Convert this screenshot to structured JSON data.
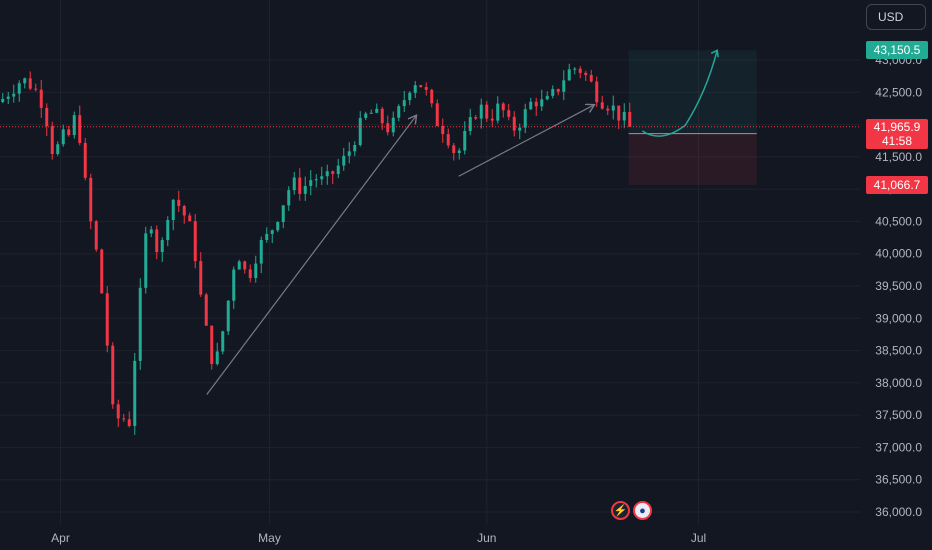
{
  "currency": "USD",
  "chart_data": {
    "type": "candlestick",
    "y_axis": {
      "range": [
        35800,
        43500
      ],
      "ticks": [
        "43,000.0",
        "42,500.0",
        "42,000.0",
        "41,500.0",
        "41,000.0",
        "40,500.0",
        "40,000.0",
        "39,500.0",
        "39,000.0",
        "38,500.0",
        "38,000.0",
        "37,500.0",
        "37,000.0",
        "36,500.0",
        "36,000.0"
      ]
    },
    "x_axis": {
      "labels": [
        "Apr",
        "May",
        "Jun",
        "Jul"
      ]
    },
    "price_line": {
      "value": 41965.9,
      "label": "41,965.9",
      "countdown": "41:58"
    },
    "position_levels": {
      "target": {
        "value": 43150.5,
        "label": "43,150.5"
      },
      "entry": {
        "value": 41860
      },
      "stop": {
        "value": 41066.7,
        "label": "41,066.7"
      }
    },
    "price_path": [
      {
        "t": 0,
        "p": 42350
      },
      {
        "t": 2,
        "p": 42550
      },
      {
        "t": 4,
        "p": 42700
      },
      {
        "t": 6,
        "p": 42600
      },
      {
        "t": 8,
        "p": 42300
      },
      {
        "t": 10,
        "p": 41400
      },
      {
        "t": 11,
        "p": 41900
      },
      {
        "t": 12,
        "p": 41700
      },
      {
        "t": 14,
        "p": 42200
      },
      {
        "t": 16,
        "p": 40700
      },
      {
        "t": 18,
        "p": 39800
      },
      {
        "t": 20,
        "p": 38200
      },
      {
        "t": 21,
        "p": 36900
      },
      {
        "t": 22,
        "p": 38000
      },
      {
        "t": 23,
        "p": 36900
      },
      {
        "t": 25,
        "p": 38900
      },
      {
        "t": 27,
        "p": 40700
      },
      {
        "t": 29,
        "p": 39900
      },
      {
        "t": 31,
        "p": 40900
      },
      {
        "t": 33,
        "p": 40700
      },
      {
        "t": 35,
        "p": 40300
      },
      {
        "t": 37,
        "p": 39000
      },
      {
        "t": 39,
        "p": 38200
      },
      {
        "t": 41,
        "p": 39000
      },
      {
        "t": 43,
        "p": 40100
      },
      {
        "t": 45,
        "p": 39600
      },
      {
        "t": 47,
        "p": 40100
      },
      {
        "t": 49,
        "p": 40300
      },
      {
        "t": 51,
        "p": 40700
      },
      {
        "t": 53,
        "p": 41100
      },
      {
        "t": 55,
        "p": 41000
      },
      {
        "t": 57,
        "p": 41200
      },
      {
        "t": 59,
        "p": 41100
      },
      {
        "t": 61,
        "p": 41300
      },
      {
        "t": 63,
        "p": 41500
      },
      {
        "t": 65,
        "p": 41900
      },
      {
        "t": 67,
        "p": 42200
      },
      {
        "t": 69,
        "p": 42100
      },
      {
        "t": 71,
        "p": 41900
      },
      {
        "t": 73,
        "p": 42300
      },
      {
        "t": 75,
        "p": 42700
      },
      {
        "t": 77,
        "p": 42600
      },
      {
        "t": 79,
        "p": 42100
      },
      {
        "t": 81,
        "p": 41900
      },
      {
        "t": 83,
        "p": 41500
      },
      {
        "t": 85,
        "p": 41900
      },
      {
        "t": 87,
        "p": 42300
      },
      {
        "t": 89,
        "p": 42100
      },
      {
        "t": 91,
        "p": 42300
      },
      {
        "t": 93,
        "p": 41900
      },
      {
        "t": 95,
        "p": 42100
      },
      {
        "t": 97,
        "p": 42400
      },
      {
        "t": 99,
        "p": 42300
      },
      {
        "t": 101,
        "p": 42500
      },
      {
        "t": 103,
        "p": 42800
      },
      {
        "t": 105,
        "p": 42900
      },
      {
        "t": 107,
        "p": 42700
      },
      {
        "t": 109,
        "p": 42400
      },
      {
        "t": 111,
        "p": 42300
      },
      {
        "t": 113,
        "p": 42100
      },
      {
        "t": 115,
        "p": 41965.9
      }
    ],
    "trend_arrows": [
      {
        "from": {
          "t": 37.6,
          "p": 37820
        },
        "to": {
          "t": 75.6,
          "p": 42130
        }
      },
      {
        "from": {
          "t": 83.4,
          "p": 41200
        },
        "to": {
          "t": 107.9,
          "p": 42300
        }
      }
    ],
    "projection": [
      {
        "t": 116.8,
        "p": 41900
      },
      {
        "t": 120.2,
        "p": 41860
      },
      {
        "t": 124.6,
        "p": 41990
      },
      {
        "t": 128.4,
        "p": 42500
      },
      {
        "t": 130.4,
        "p": 43150
      }
    ],
    "colors": {
      "up": "#22ab94",
      "down": "#f23645",
      "background": "#131722",
      "arrow": "#787b86",
      "projection": "#26a69a"
    }
  }
}
